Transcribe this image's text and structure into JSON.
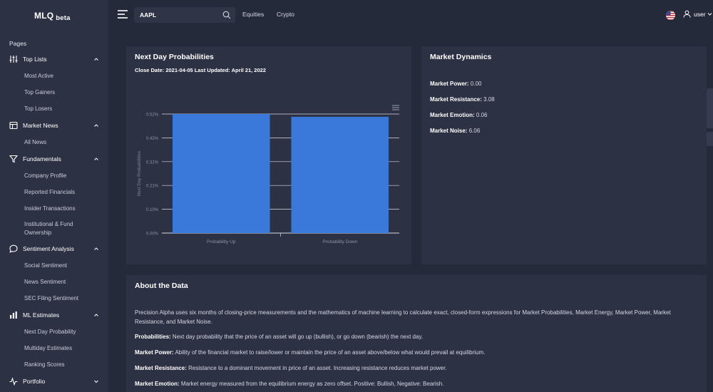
{
  "brand": {
    "name": "MLQ",
    "tag": "beta"
  },
  "sidebar": {
    "section_label": "Pages",
    "groups": [
      {
        "label": "Top Lists",
        "icon": "sliders-icon",
        "items": [
          "Most Active",
          "Top Gainers",
          "Top Losers"
        ]
      },
      {
        "label": "Market News",
        "icon": "newspaper-icon",
        "items": [
          "All News"
        ]
      },
      {
        "label": "Fundamentals",
        "icon": "filter-icon",
        "items": [
          "Company Profile",
          "Reported Financials",
          "Insider Transactions",
          "Institutional & Fund Ownership"
        ]
      },
      {
        "label": "Sentiment Analysis",
        "icon": "chat-bubble-icon",
        "items": [
          "Social Sentiment",
          "News Sentiment",
          "SEC Filing Sentiment"
        ]
      },
      {
        "label": "ML Estimates",
        "icon": "bar-chart-icon",
        "items": [
          "Next Day Probability",
          "Multiday Estimates",
          "Ranking Scores"
        ]
      },
      {
        "label": "Portfolio",
        "icon": "activity-icon",
        "items": []
      }
    ]
  },
  "topbar": {
    "search_value": "AAPL",
    "links": [
      "Equities",
      "Crypto"
    ],
    "user_label": "user"
  },
  "probabilities_card": {
    "title": "Next Day Probabilities",
    "subtitle": "Close Date: 2021-04-05 Last Updated: April 21, 2022"
  },
  "chart_data": {
    "type": "bar",
    "categories": [
      "Probability Up",
      "Probability Down"
    ],
    "values": [
      0.52,
      0.508
    ],
    "ylabel": "Next Day Probabilities",
    "ylim": [
      0,
      0.52
    ],
    "yticks": [
      "0.00%",
      "0.10%",
      "0.21%",
      "0.31%",
      "0.42%",
      "0.52%"
    ],
    "bar_color": "#3a79d9",
    "grid": true
  },
  "market_dynamics": {
    "title": "Market Dynamics",
    "rows": [
      {
        "label": "Market Power:",
        "value": "0.00"
      },
      {
        "label": "Market Resistance:",
        "value": "3.08"
      },
      {
        "label": "Market Emotion:",
        "value": "0.06"
      },
      {
        "label": "Market Noise:",
        "value": "6.06"
      }
    ]
  },
  "about": {
    "title": "About the Data",
    "intro": "Precision Alpha uses six months of closing-price measurements and the mathematics of machine learning to calculate exact, closed-form expressions for Market Probabilities, Market Energy, Market Power, Market Resistance, and Market Noise.",
    "definitions": [
      {
        "term": "Probabilities:",
        "text": "Next day probability that the price of an asset will go up (bullish), or go down (bearish) the next day."
      },
      {
        "term": "Market Power:",
        "text": "Ability of the financial market to raise/lower or maintain the price of an asset above/below what would prevail at equilibrium."
      },
      {
        "term": "Market Resistance:",
        "text": "Resistance to a dominant movement in price of an asset. Increasing resistance reduces market power."
      },
      {
        "term": "Market Emotion:",
        "text": "Market energy measured from the equilibrium energy as zero offset. Positive: Bullish, Negative: Bearish."
      }
    ]
  },
  "colors": {
    "background": "#252a3b",
    "panel": "#2c3144",
    "accent": "#3a79d9"
  }
}
